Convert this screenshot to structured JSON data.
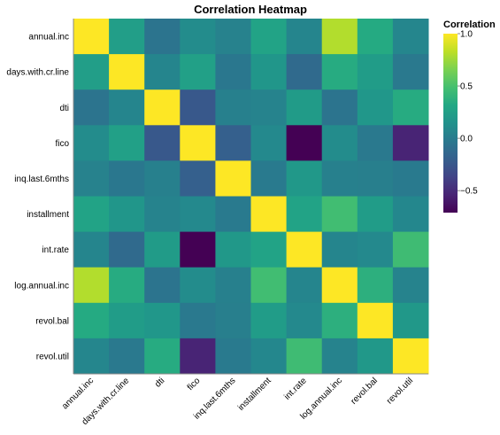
{
  "chart_data": {
    "type": "heatmap",
    "title": "Correlation Heatmap",
    "xlabel": "",
    "ylabel": "",
    "x_categories": [
      "annual.inc",
      "days.with.cr.line",
      "dti",
      "fico",
      "inq.last.6mths",
      "installment",
      "int.rate",
      "log.annual.inc",
      "revol.bal",
      "revol.util"
    ],
    "y_categories": [
      "annual.inc",
      "days.with.cr.line",
      "dti",
      "fico",
      "inq.last.6mths",
      "installment",
      "int.rate",
      "log.annual.inc",
      "revol.bal",
      "revol.util"
    ],
    "values": [
      [
        1.0,
        0.24,
        -0.05,
        0.11,
        0.04,
        0.28,
        0.06,
        0.8,
        0.33,
        0.07
      ],
      [
        0.24,
        1.0,
        0.06,
        0.26,
        -0.03,
        0.18,
        -0.12,
        0.34,
        0.23,
        -0.02
      ],
      [
        -0.05,
        0.06,
        1.0,
        -0.24,
        0.03,
        0.05,
        0.22,
        -0.05,
        0.19,
        0.34
      ],
      [
        0.11,
        0.26,
        -0.24,
        1.0,
        -0.19,
        0.09,
        -0.71,
        0.11,
        -0.02,
        -0.54
      ],
      [
        0.04,
        -0.03,
        0.03,
        -0.19,
        1.0,
        -0.01,
        0.2,
        0.03,
        0.02,
        -0.01
      ],
      [
        0.28,
        0.18,
        0.05,
        0.09,
        -0.01,
        1.0,
        0.28,
        0.47,
        0.23,
        0.08
      ],
      [
        0.06,
        -0.12,
        0.22,
        -0.71,
        0.2,
        0.28,
        1.0,
        0.06,
        0.09,
        0.46
      ],
      [
        0.8,
        0.34,
        -0.05,
        0.11,
        0.03,
        0.47,
        0.06,
        1.0,
        0.37,
        0.05
      ],
      [
        0.33,
        0.23,
        0.19,
        -0.02,
        0.02,
        0.23,
        0.09,
        0.37,
        1.0,
        0.2
      ],
      [
        0.07,
        -0.02,
        0.34,
        -0.54,
        -0.01,
        0.08,
        0.46,
        0.05,
        0.2,
        1.0
      ]
    ],
    "color_scale": "viridis",
    "color_domain": [
      -0.71,
      1.0
    ],
    "legend": {
      "title": "Correlation",
      "placement": "right",
      "ticks": [
        1.0,
        0.5,
        0.0,
        -0.5
      ],
      "tick_labels": [
        "1.0",
        "0.5",
        "0.0",
        "−0.5"
      ]
    },
    "grid": false
  }
}
